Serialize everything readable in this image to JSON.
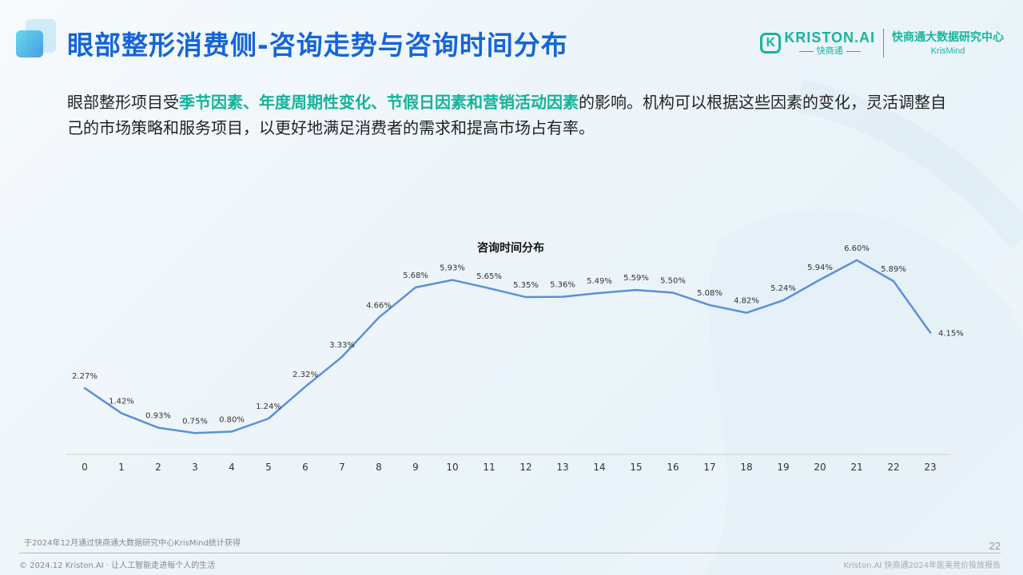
{
  "header": {
    "title": "眼部整形消费侧-咨询走势与咨询时间分布",
    "brand": {
      "logo_letter": "K",
      "name": "KRISTON.AI",
      "sub": "快商通",
      "org": "快商通大数据研究中心",
      "org_sub": "KrisMind"
    }
  },
  "intro": {
    "part1": "眼部整形项目受",
    "highlight": "季节因素、年度周期性变化、节假日因素和营销活动因素",
    "part2": "的影响。机构可以根据这些因素的变化，灵活调整自己的市场策略和服务项目，以更好地满足消费者的需求和提高市场占有率。"
  },
  "chart_data": {
    "type": "line",
    "title": "咨询时间分布",
    "x": [
      0,
      1,
      2,
      3,
      4,
      5,
      6,
      7,
      8,
      9,
      10,
      11,
      12,
      13,
      14,
      15,
      16,
      17,
      18,
      19,
      20,
      21,
      22,
      23
    ],
    "values": [
      2.27,
      1.42,
      0.93,
      0.75,
      0.8,
      1.24,
      2.32,
      3.33,
      4.66,
      5.68,
      5.93,
      5.65,
      5.35,
      5.36,
      5.49,
      5.59,
      5.5,
      5.08,
      4.82,
      5.24,
      5.94,
      6.6,
      5.89,
      4.15
    ],
    "labels": [
      "2.27%",
      "1.42%",
      "0.93%",
      "0.75%",
      "0.80%",
      "1.24%",
      "2.32%",
      "3.33%",
      "4.66%",
      "5.68%",
      "5.93%",
      "5.65%",
      "5.35%",
      "5.36%",
      "5.49%",
      "5.59%",
      "5.50%",
      "5.08%",
      "4.82%",
      "5.24%",
      "5.94%",
      "6.60%",
      "5.89%",
      "4.15%"
    ],
    "xlabel": "",
    "ylabel": "",
    "ylim": [
      0,
      7
    ],
    "line_color": "#5b8fd9",
    "grid": false
  },
  "footer": {
    "source": "于2024年12月通过快商通大数据研究中心KrisMind统计获得",
    "page": "22",
    "copyright": "© 2024.12 Kriston.AI · 让人工智能走进每个人的生活",
    "report": "Kriston.AI 快商通2024年医美竞价投放报告"
  }
}
